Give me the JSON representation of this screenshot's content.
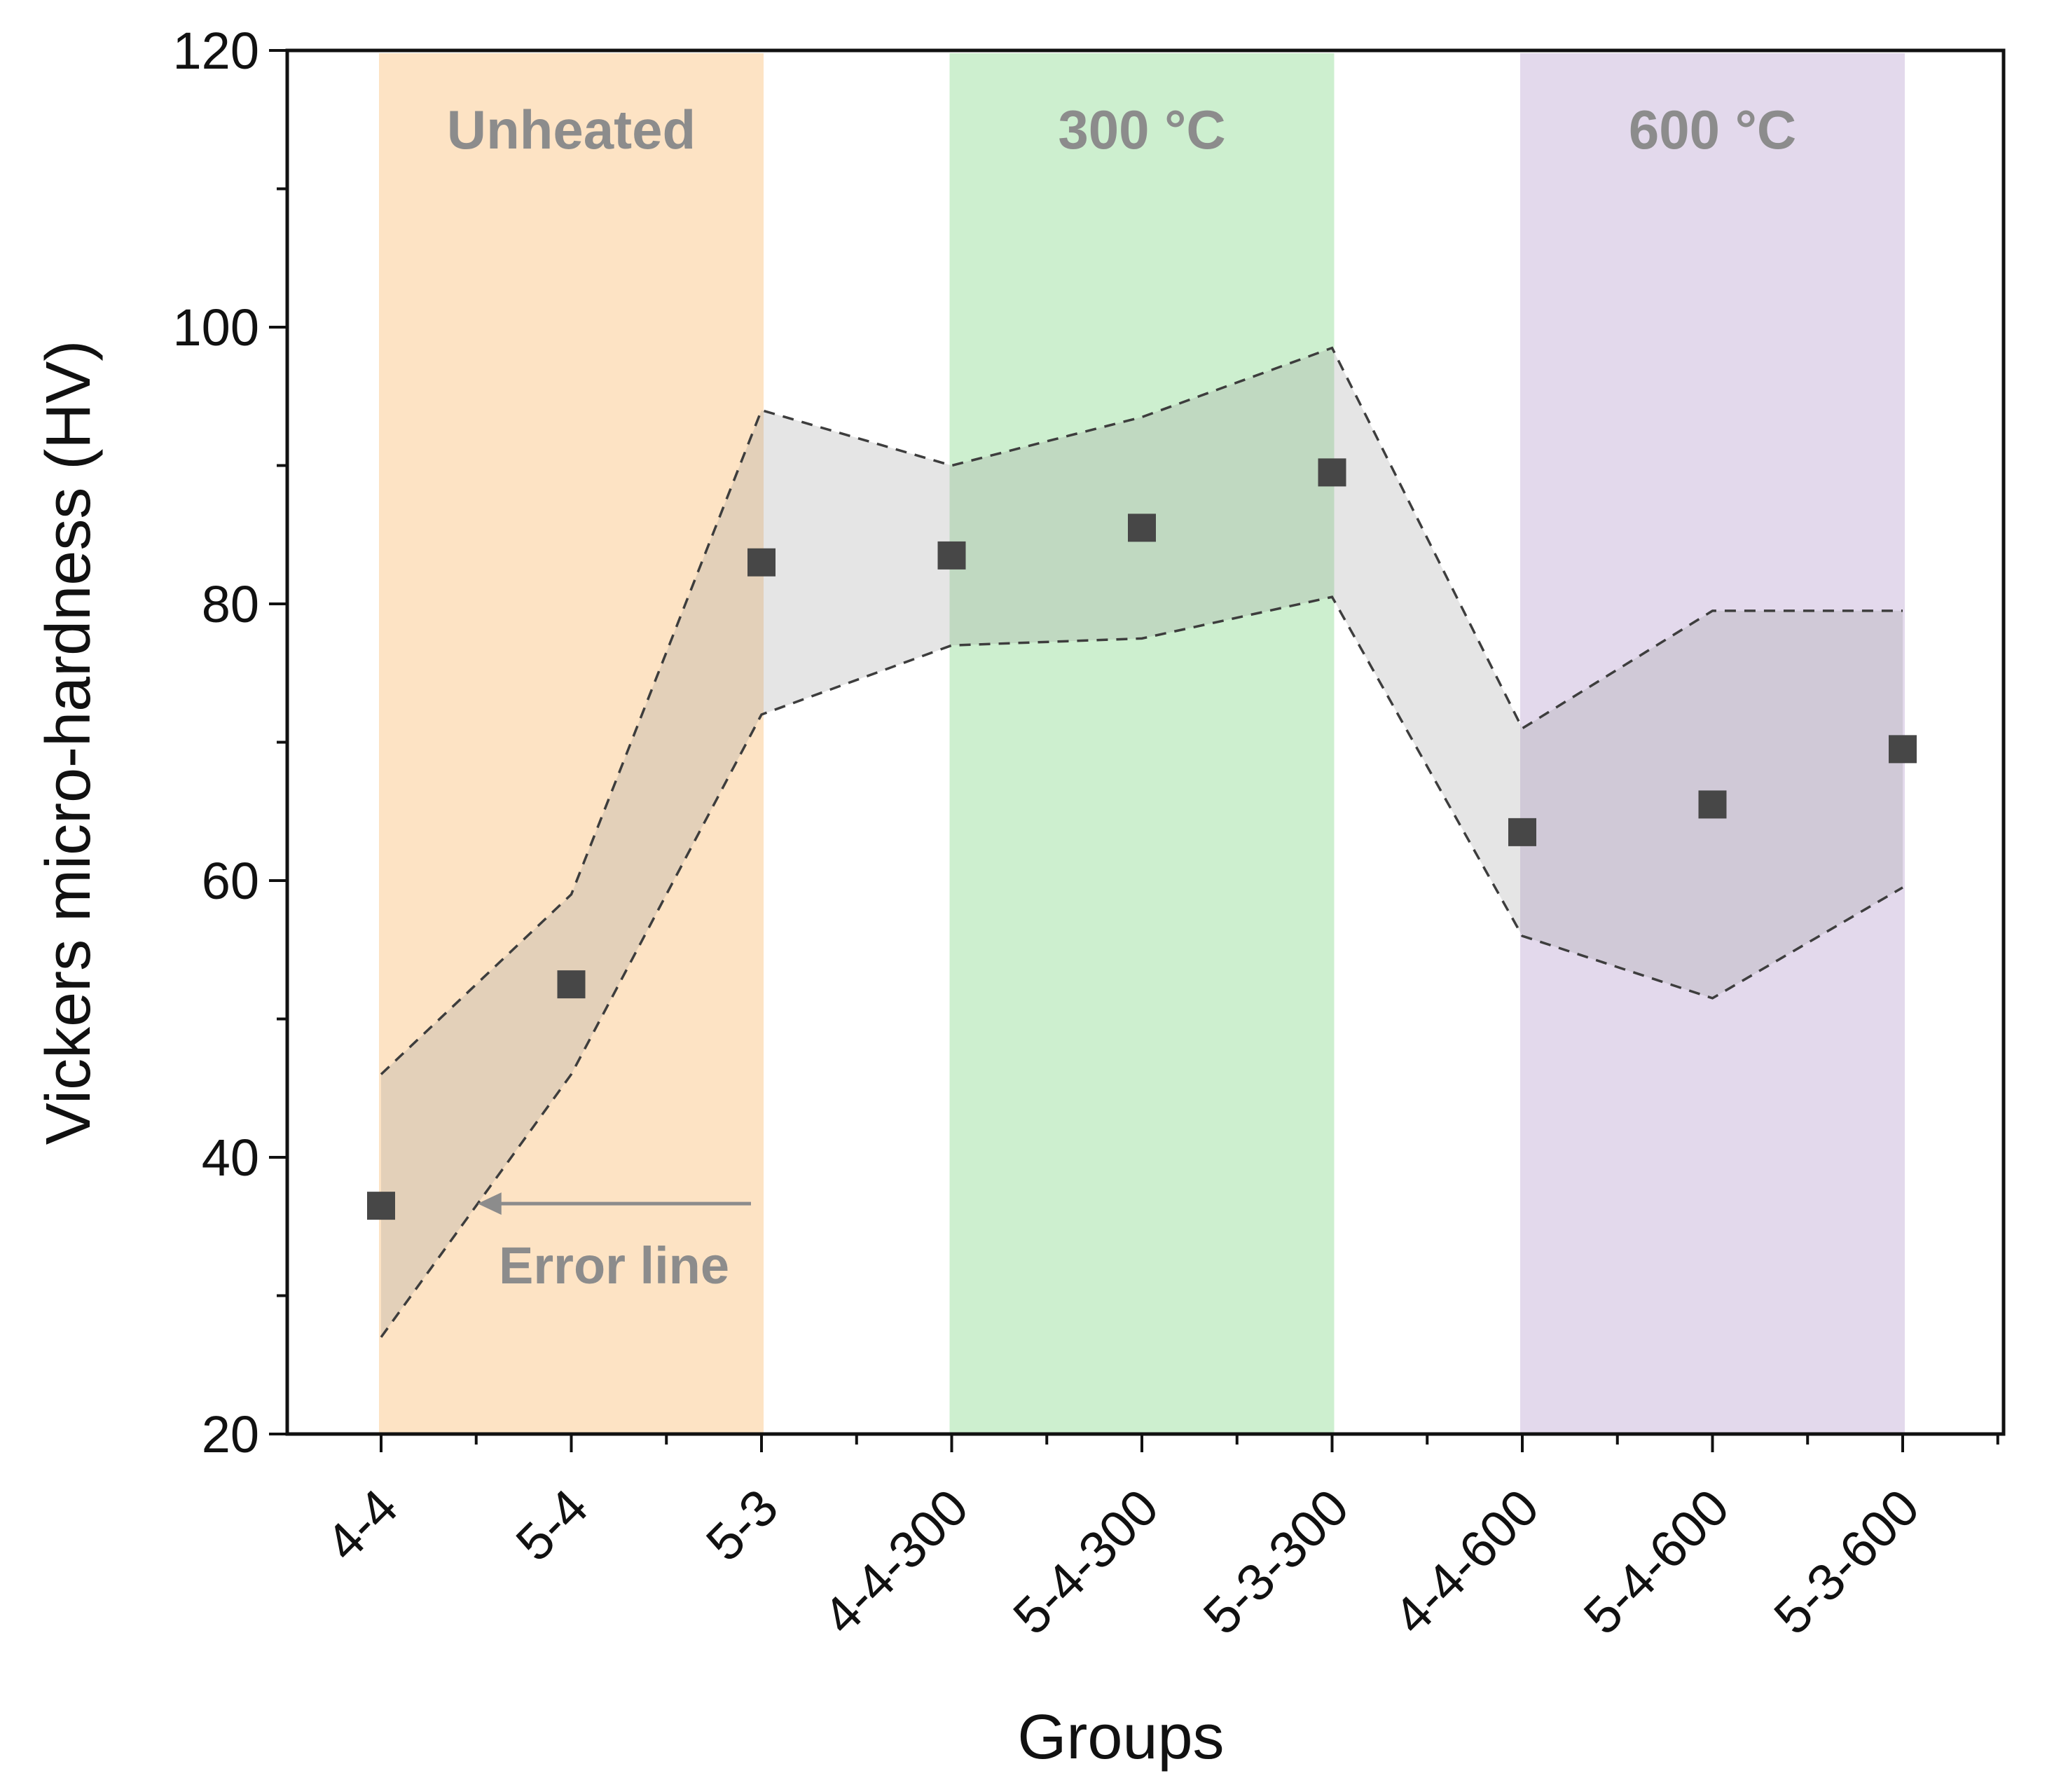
{
  "chart_data": {
    "type": "scatter",
    "title": "",
    "xlabel": "Groups",
    "ylabel": "Vickers micro-hardness (HV)",
    "ylim": [
      20,
      120
    ],
    "yticks": [
      20,
      40,
      60,
      80,
      100,
      120
    ],
    "categories": [
      "4-4",
      "5-4",
      "5-3",
      "4-4-300",
      "5-4-300",
      "5-3-300",
      "4-4-600",
      "5-4-600",
      "5-3-600"
    ],
    "series": [
      {
        "name": "Vickers micro-hardness",
        "values": [
          36.5,
          52.5,
          83,
          83.5,
          85.5,
          89.5,
          63.5,
          65.5,
          69.5
        ],
        "upper": [
          46,
          59,
          94,
          90,
          93.5,
          98.5,
          71,
          79.5,
          79.5
        ],
        "lower": [
          27,
          46,
          72,
          77,
          77.5,
          80.5,
          56,
          51.5,
          59.5
        ]
      }
    ],
    "bands": [
      {
        "label": "Unheated",
        "from": 0,
        "to": 2,
        "color": "#fde3c4"
      },
      {
        "label": "300 °C",
        "from": 3,
        "to": 5,
        "color": "#cdefcf"
      },
      {
        "label": "600 °C",
        "from": 6,
        "to": 8,
        "color": "#e3d9ec"
      }
    ],
    "annotations": [
      {
        "text": "Error line",
        "arrow_x": 0.5,
        "arrow_y": 36.5
      }
    ],
    "colors": {
      "marker": "#474747",
      "error_fill": "#9a9a9a",
      "error_line": "#3d3d3d",
      "band_text": "#8c8c8c"
    }
  }
}
